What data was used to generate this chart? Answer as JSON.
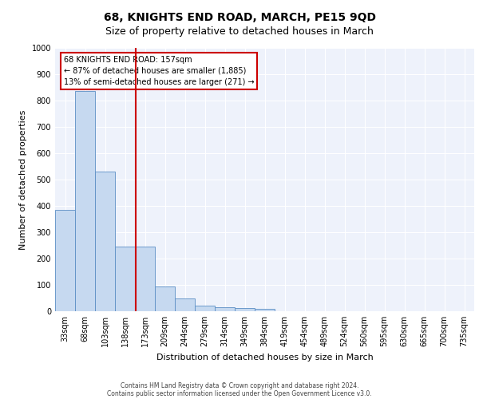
{
  "title": "68, KNIGHTS END ROAD, MARCH, PE15 9QD",
  "subtitle": "Size of property relative to detached houses in March",
  "xlabel": "Distribution of detached houses by size in March",
  "ylabel": "Number of detached properties",
  "categories": [
    "33sqm",
    "68sqm",
    "103sqm",
    "138sqm",
    "173sqm",
    "209sqm",
    "244sqm",
    "279sqm",
    "314sqm",
    "349sqm",
    "384sqm",
    "419sqm",
    "454sqm",
    "489sqm",
    "524sqm",
    "560sqm",
    "595sqm",
    "630sqm",
    "665sqm",
    "700sqm",
    "735sqm"
  ],
  "values": [
    385,
    835,
    530,
    245,
    245,
    95,
    50,
    22,
    15,
    12,
    10,
    0,
    0,
    0,
    0,
    0,
    0,
    0,
    0,
    0,
    0
  ],
  "bar_color": "#c6d9f0",
  "bar_edge_color": "#5b8ec4",
  "ylim": [
    0,
    1000
  ],
  "yticks": [
    0,
    100,
    200,
    300,
    400,
    500,
    600,
    700,
    800,
    900,
    1000
  ],
  "red_line_x": 3.54,
  "red_line_color": "#cc0000",
  "annotation_text": "68 KNIGHTS END ROAD: 157sqm\n← 87% of detached houses are smaller (1,885)\n13% of semi-detached houses are larger (271) →",
  "annotation_box_color": "#cc0000",
  "footer_line1": "Contains HM Land Registry data © Crown copyright and database right 2024.",
  "footer_line2": "Contains public sector information licensed under the Open Government Licence v3.0.",
  "background_color": "#eef2fb",
  "grid_color": "#ffffff",
  "title_fontsize": 10,
  "subtitle_fontsize": 9,
  "ylabel_fontsize": 8,
  "xlabel_fontsize": 8,
  "tick_fontsize": 7,
  "annot_fontsize": 7
}
